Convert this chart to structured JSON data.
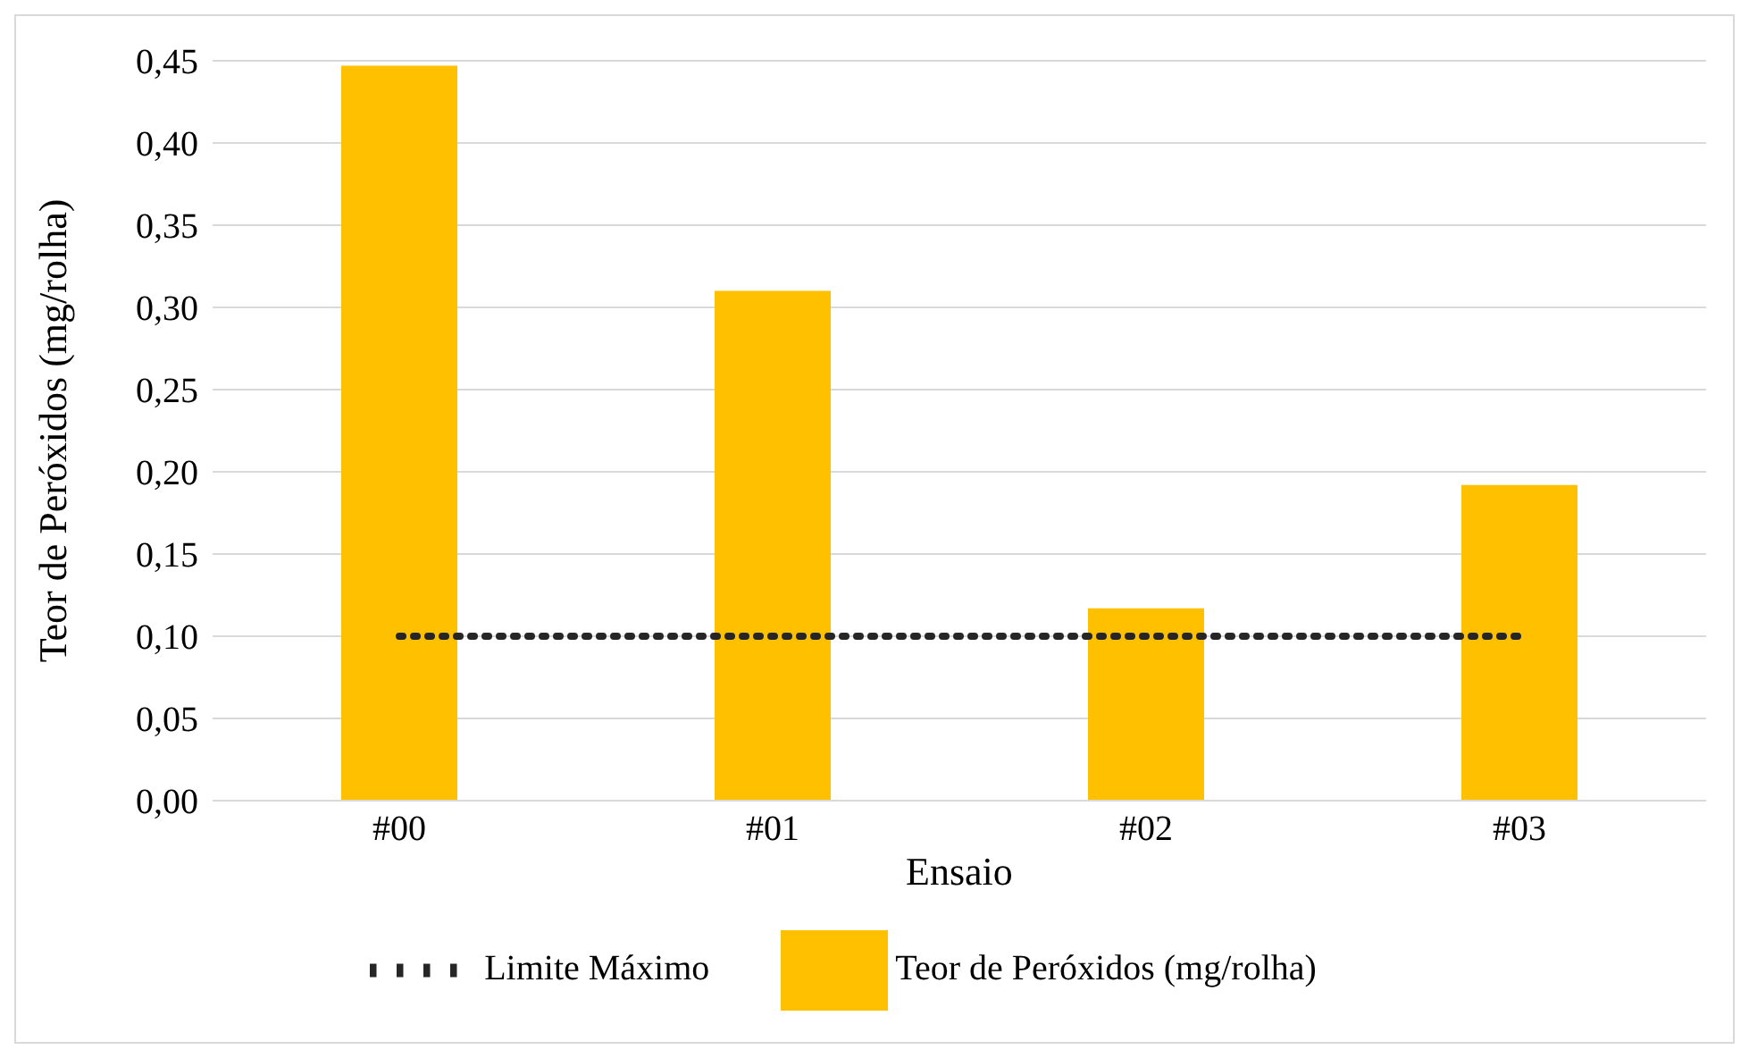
{
  "chart_data": {
    "type": "bar",
    "xlabel": "Ensaio",
    "ylabel": "Teor de Peróxidos (mg/rolha)",
    "categories": [
      "#00",
      "#01",
      "#02",
      "#03"
    ],
    "series": [
      {
        "name": "Teor de Peróxidos (mg/rolha)",
        "color": "#ffc000",
        "values": [
          0.447,
          0.31,
          0.117,
          0.192
        ]
      },
      {
        "name": "Limite Máximo",
        "type": "line",
        "color": "#262626",
        "line_style": "dotted",
        "values": [
          0.1,
          0.1,
          0.1,
          0.1
        ]
      }
    ],
    "ylim": [
      0,
      0.45
    ],
    "yticks": [
      {
        "value": 0,
        "label": "0,00"
      },
      {
        "value": 0.05,
        "label": "0,05"
      },
      {
        "value": 0.1,
        "label": "0,10"
      },
      {
        "value": 0.15,
        "label": "0,15"
      },
      {
        "value": 0.2,
        "label": "0,20"
      },
      {
        "value": 0.25,
        "label": "0,25"
      },
      {
        "value": 0.3,
        "label": "0,30"
      },
      {
        "value": 0.35,
        "label": "0,35"
      },
      {
        "value": 0.4,
        "label": "0,40"
      },
      {
        "value": 0.45,
        "label": "0,45"
      }
    ],
    "grid": "y",
    "legend": "bottom"
  }
}
